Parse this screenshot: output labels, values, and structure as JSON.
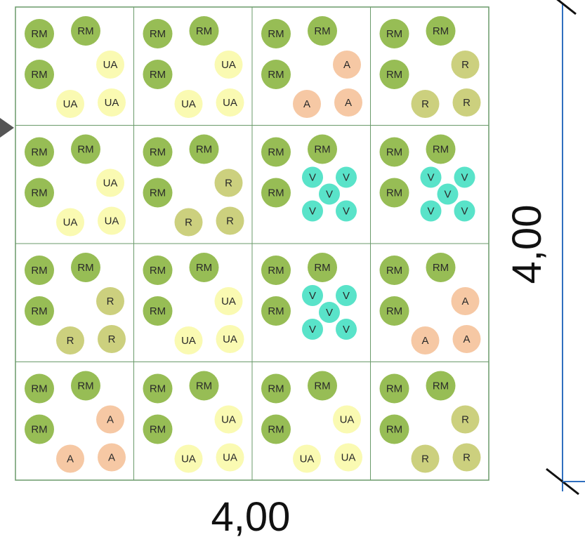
{
  "plants": {
    "RM": {
      "label": "RM",
      "color": "#97bd55"
    },
    "UA": {
      "label": "UA",
      "color": "#fafab2"
    },
    "A": {
      "label": "A",
      "color": "#f6c8a4"
    },
    "R": {
      "label": "R",
      "color": "#ccd07e"
    },
    "V": {
      "label": "V",
      "color": "#59e3c9"
    }
  },
  "grid": {
    "rows": [
      [
        "UA",
        "UA",
        "A",
        "R"
      ],
      [
        "UA",
        "R",
        "V",
        "V"
      ],
      [
        "R",
        "UA",
        "V",
        "A"
      ],
      [
        "A",
        "UA",
        "UA",
        "R"
      ]
    ]
  },
  "dimensions": {
    "width_label": "4,00",
    "height_label": "4,00"
  },
  "colors": {
    "grid_line": "#6a9a6a",
    "dimension_line": "#2f6fbf",
    "arrow": "#555555"
  }
}
